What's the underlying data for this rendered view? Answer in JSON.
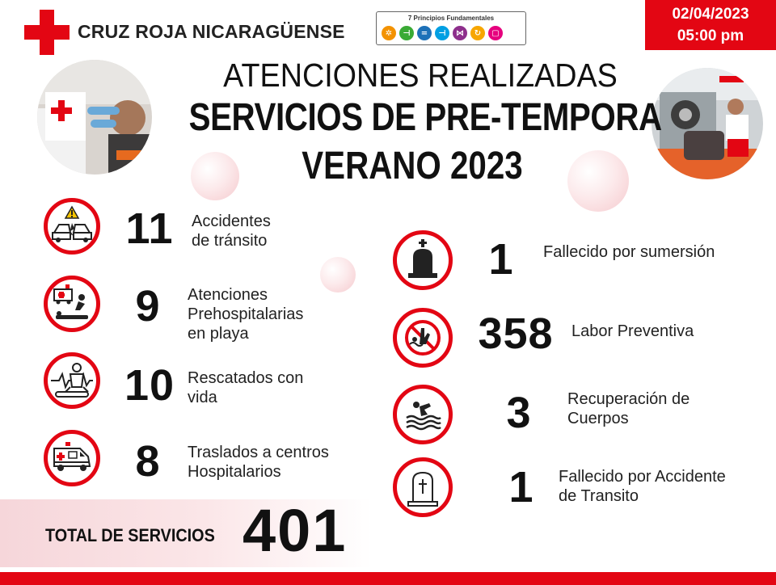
{
  "header": {
    "org_name": "CRUZ ROJA NICARAGÜENSE",
    "principles_title": "7 Principios Fundamentales",
    "principles_colors": [
      "#f39200",
      "#3aaa35",
      "#1d71b8",
      "#009fe3",
      "#8e2f8c",
      "#f7a600",
      "#e6007e"
    ],
    "date": "02/04/2023",
    "time": "05:00 pm"
  },
  "titles": {
    "line1": "ATENCIONES REALIZADAS",
    "line2": "SERVICIOS DE PRE-TEMPORA",
    "line3": "VERANO 2023"
  },
  "stats_left": [
    {
      "value": "11",
      "label_l1": "Accidentes",
      "label_l2": "de tránsito",
      "label_l3": "",
      "icon": "car-crash-icon"
    },
    {
      "value": "9",
      "label_l1": "Atenciones",
      "label_l2": "Prehospitalarias",
      "label_l3": "en playa",
      "icon": "ambulance-cpr-icon"
    },
    {
      "value": "10",
      "label_l1": "Rescatados con",
      "label_l2": "vida",
      "label_l3": "",
      "icon": "rescue-heartbeat-icon"
    },
    {
      "value": "8",
      "label_l1": "Traslados a centros",
      "label_l2": "Hospitalarios",
      "label_l3": "",
      "icon": "ambulance-icon"
    }
  ],
  "stats_right": [
    {
      "value": "1",
      "label_l1": "Fallecido por sumersión",
      "label_l2": "",
      "icon": "tombstone-icon"
    },
    {
      "value": "358",
      "label_l1": "Labor Preventiva",
      "label_l2": "",
      "icon": "no-swimming-icon"
    },
    {
      "value": "3",
      "label_l1": "Recuperación de",
      "label_l2": "Cuerpos",
      "icon": "swimmer-icon"
    },
    {
      "value": "1",
      "label_l1": "Fallecido por Accidente",
      "label_l2": "de Transito",
      "icon": "grave-cross-icon"
    }
  ],
  "total": {
    "label": "TOTAL DE SERVICIOS",
    "value": "401"
  },
  "colors": {
    "brand_red": "#e30613",
    "text_dark": "#111111"
  }
}
